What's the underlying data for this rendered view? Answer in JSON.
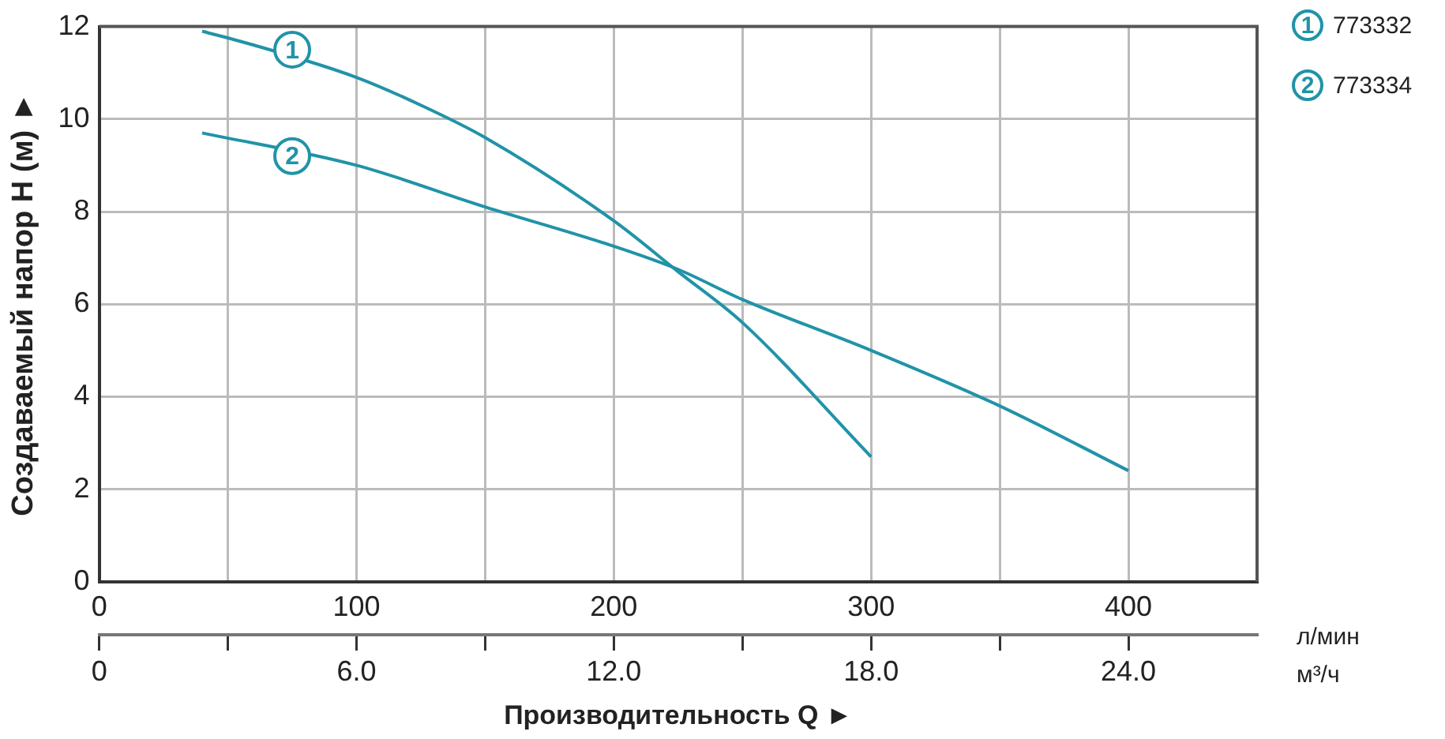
{
  "chart_data": {
    "type": "line",
    "xlabel": "Производительность Q ►",
    "ylabel": "Создаваемый напор Н (м) ►",
    "xlim": [
      0,
      450
    ],
    "xticks": [
      0,
      {
        "value": 50,
        "label": null
      },
      100,
      {
        "value": 150,
        "label": null
      },
      200,
      {
        "value": 250,
        "label": null
      },
      300,
      {
        "value": 350,
        "label": null
      },
      400
    ],
    "x2lim": [
      0,
      27
    ],
    "x2ticks": [
      0,
      {
        "value": 3,
        "label": null
      },
      {
        "value": 6,
        "label": "6.0"
      },
      {
        "value": 9,
        "label": null
      },
      {
        "value": 12,
        "label": "12.0"
      },
      {
        "value": 15,
        "label": null
      },
      {
        "value": 18,
        "label": "18.0"
      },
      {
        "value": 21,
        "label": null
      },
      {
        "value": 24,
        "label": "24.0"
      }
    ],
    "ylim": [
      0,
      12
    ],
    "yticks": [
      0,
      2,
      4,
      6,
      8,
      10,
      12
    ],
    "grid": true,
    "marker": "none",
    "legend": "top right",
    "series": [
      {
        "name": "773332",
        "color": "#2193a8",
        "x": [
          40,
          60,
          100,
          125,
          150,
          200,
          225,
          250,
          300
        ],
        "values": [
          11.9,
          11.6,
          10.9,
          10.3,
          9.6,
          7.8,
          6.7,
          5.6,
          2.7
        ]
      },
      {
        "name": "773334",
        "color": "#2193a8",
        "x": [
          40,
          100,
          150,
          200,
          225,
          250,
          300,
          350,
          400
        ],
        "values": [
          9.7,
          9.0,
          8.1,
          7.25,
          6.75,
          6.1,
          5.0,
          3.8,
          2.4
        ]
      }
    ],
    "annotations": [
      {
        "text": "1",
        "x": 75,
        "y": 11.5
      },
      {
        "text": "2",
        "x": 75,
        "y": 9.2
      },
      "л/мин",
      "м³/ч"
    ]
  }
}
